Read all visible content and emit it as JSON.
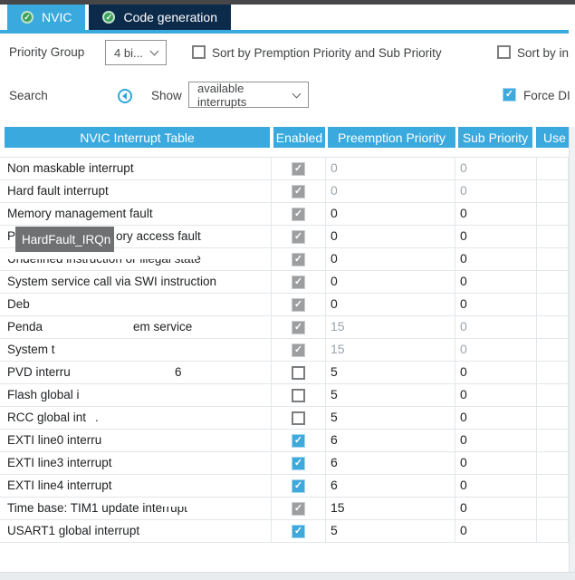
{
  "tabs": [
    {
      "label": "NVIC",
      "active": true
    },
    {
      "label": "Code generation",
      "active": false
    }
  ],
  "controls": {
    "priority_group_label": "Priority Group",
    "priority_group_value": "4 bi...",
    "sort_premption_label": "Sort by Premption Priority and Sub Priority",
    "sort_interrupts_label": "Sort by in",
    "search_label": "Search",
    "show_label": "Show",
    "show_value": "available interrupts",
    "force_label": "Force DI"
  },
  "table": {
    "headers": [
      "NVIC Interrupt Table",
      "Enabled",
      "Preemption Priority",
      "Sub Priority",
      "Use"
    ],
    "rows": [
      {
        "label": "Non maskable interrupt",
        "checkbox": "gray-checked",
        "preemption": "0",
        "sub": "0",
        "muted": true
      },
      {
        "label": "Hard fault interrupt",
        "checkbox": "gray-checked",
        "preemption": "0",
        "sub": "0",
        "muted": true
      },
      {
        "label": "Memory management fault",
        "checkbox": "gray-checked",
        "preemption": "0",
        "sub": "0",
        "muted": false
      },
      {
        "label": "Pr",
        "label2": "ory access fault",
        "label2_x": 128,
        "checkbox": "gray-checked",
        "preemption": "0",
        "sub": "0",
        "muted": false
      },
      {
        "label": "Undefined instruction or illegal state",
        "checkbox": "gray-checked",
        "preemption": "0",
        "sub": "0",
        "muted": false
      },
      {
        "label": "System service call via SWI instruction",
        "checkbox": "gray-checked",
        "preemption": "0",
        "sub": "0",
        "muted": false
      },
      {
        "label": "Deb",
        "checkbox": "gray-checked",
        "preemption": "0",
        "sub": "0",
        "muted": false
      },
      {
        "label": "Penda",
        "label2": "em service",
        "label2_x": 147,
        "checkbox": "gray-checked",
        "preemption": "15",
        "sub": "0",
        "muted": true
      },
      {
        "label": "System t",
        "checkbox": "gray-checked",
        "preemption": "15",
        "sub": "0",
        "muted": true
      },
      {
        "label": "PVD interru",
        "label2": "6",
        "label2_x": 193,
        "checkbox": "unchecked",
        "preemption": "5",
        "sub": "0",
        "muted": false
      },
      {
        "label": "Flash global i",
        "checkbox": "unchecked",
        "preemption": "5",
        "sub": "0",
        "muted": false
      },
      {
        "label": "RCC global int",
        "label2": ".",
        "label2_x": 105,
        "checkbox": "unchecked",
        "preemption": "5",
        "sub": "0",
        "muted": false
      },
      {
        "label": "EXTI line0 interru",
        "checkbox": "blue-checked",
        "preemption": "6",
        "sub": "0",
        "muted": false
      },
      {
        "label": "EXTI line3 interrupt",
        "checkbox": "blue-checked",
        "preemption": "6",
        "sub": "0",
        "muted": false
      },
      {
        "label": "EXTI line4 interrupt",
        "checkbox": "blue-checked",
        "preemption": "6",
        "sub": "0",
        "muted": false
      },
      {
        "label": "Time base: TIM1 update interrupt",
        "checkbox": "gray-checked",
        "preemption": "15",
        "sub": "0",
        "muted": false
      },
      {
        "label": "USART1 global interrupt",
        "checkbox": "blue-checked",
        "preemption": "5",
        "sub": "0",
        "muted": false
      }
    ]
  },
  "tooltip": {
    "text": "HardFault_IRQn"
  },
  "colors": {
    "accent_blue": "#3aa9dd",
    "tab_dark": "#0c2a4a",
    "check_green": "#3da15a",
    "checkbox_gray": "#9c9ea0",
    "tooltip_gray": "#6e7072",
    "muted_text": "#9ba4ab"
  }
}
